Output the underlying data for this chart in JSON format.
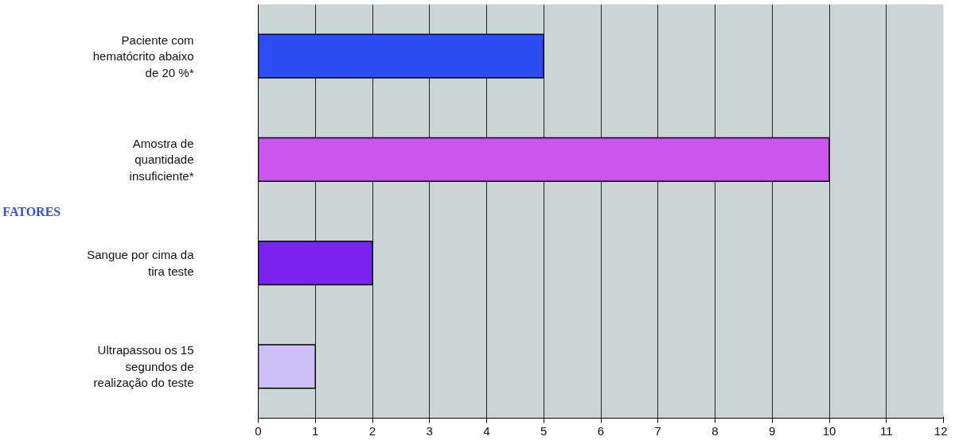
{
  "chart_data": {
    "type": "bar",
    "orientation": "horizontal",
    "ylabel": "FATORES",
    "categories": [
      "Paciente com\nhematócrito abaixo\nde 20 %*",
      "Amostra de\nquantidade\ninsuficiente*",
      "Sangue por cima da\ntira teste",
      "Ultrapassou os 15\nsegundos de\nrealização do teste"
    ],
    "values": [
      5,
      10,
      2,
      1
    ],
    "colors": [
      "#2a4cf2",
      "#cc55f0",
      "#7a22ee",
      "#cbbff5"
    ],
    "xlim": [
      0,
      12
    ],
    "xticks": [
      0,
      1,
      2,
      3,
      4,
      5,
      6,
      7,
      8,
      9,
      10,
      11,
      12
    ],
    "grid": "x"
  }
}
